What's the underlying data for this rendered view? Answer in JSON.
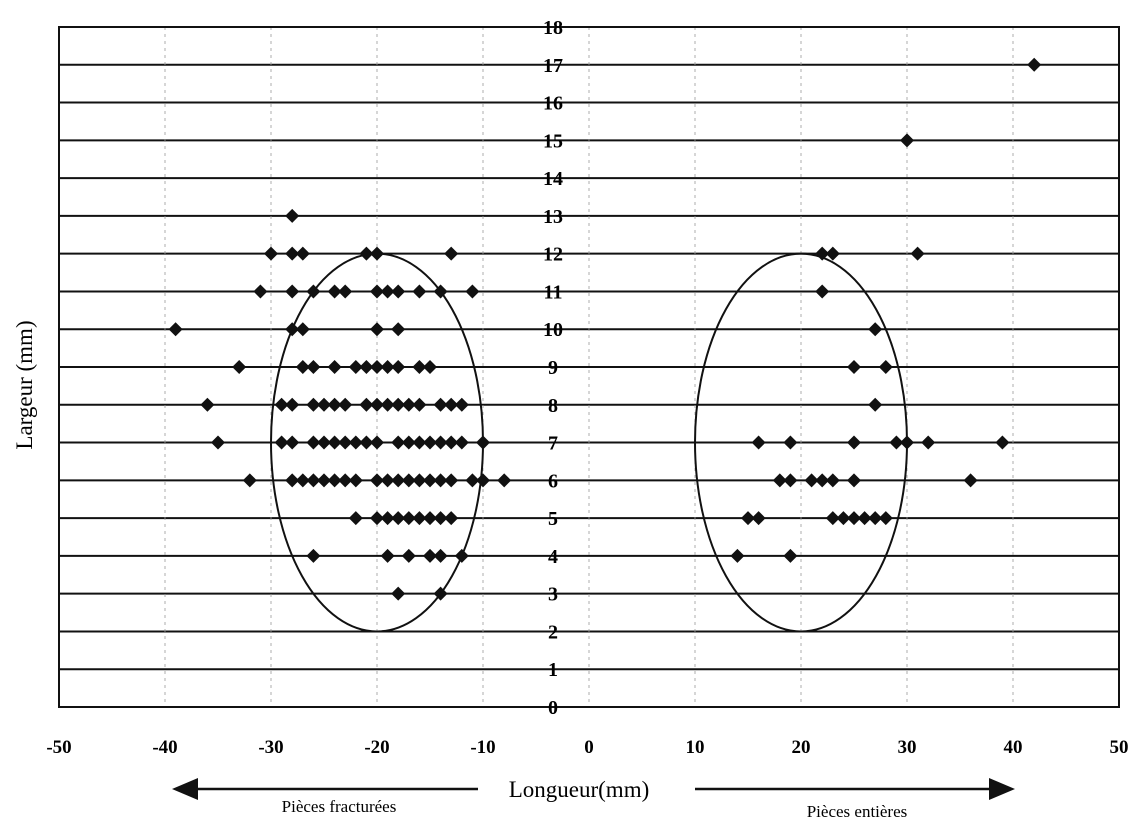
{
  "chart_data": {
    "type": "scatter",
    "title": "",
    "xlabel": "Longueur(mm)",
    "ylabel": "Largeur (mm)",
    "xlim": [
      -50,
      50
    ],
    "ylim": [
      0,
      18
    ],
    "x_ticks": [
      "-50",
      "-40",
      "-30",
      "-20",
      "-10",
      "0",
      "10",
      "20",
      "30",
      "40",
      "50"
    ],
    "y_ticks": [
      "0",
      "1",
      "2",
      "3",
      "4",
      "5",
      "6",
      "7",
      "8",
      "9",
      "10",
      "11",
      "12",
      "13",
      "14",
      "15",
      "16",
      "17",
      "18"
    ],
    "grid": "horizontal",
    "marker": "diamond",
    "marker_color": "#111111",
    "points": [
      [
        42,
        17
      ],
      [
        30,
        15
      ],
      [
        -28,
        13
      ],
      [
        -30,
        12
      ],
      [
        -28,
        12
      ],
      [
        -27,
        12
      ],
      [
        -21,
        12
      ],
      [
        -20,
        12
      ],
      [
        -13,
        12
      ],
      [
        22,
        12
      ],
      [
        23,
        12
      ],
      [
        31,
        12
      ],
      [
        -31,
        11
      ],
      [
        -28,
        11
      ],
      [
        -26,
        11
      ],
      [
        -24,
        11
      ],
      [
        -23,
        11
      ],
      [
        -20,
        11
      ],
      [
        -19,
        11
      ],
      [
        -18,
        11
      ],
      [
        -16,
        11
      ],
      [
        -14,
        11
      ],
      [
        -11,
        11
      ],
      [
        22,
        11
      ],
      [
        -39,
        10
      ],
      [
        -28,
        10
      ],
      [
        -27,
        10
      ],
      [
        -20,
        10
      ],
      [
        -18,
        10
      ],
      [
        27,
        10
      ],
      [
        -33,
        9
      ],
      [
        -27,
        9
      ],
      [
        -26,
        9
      ],
      [
        -24,
        9
      ],
      [
        -22,
        9
      ],
      [
        -21,
        9
      ],
      [
        -20,
        9
      ],
      [
        -19,
        9
      ],
      [
        -18,
        9
      ],
      [
        -16,
        9
      ],
      [
        -15,
        9
      ],
      [
        25,
        9
      ],
      [
        28,
        9
      ],
      [
        -36,
        8
      ],
      [
        -29,
        8
      ],
      [
        -28,
        8
      ],
      [
        -26,
        8
      ],
      [
        -25,
        8
      ],
      [
        -24,
        8
      ],
      [
        -23,
        8
      ],
      [
        -21,
        8
      ],
      [
        -20,
        8
      ],
      [
        -19,
        8
      ],
      [
        -18,
        8
      ],
      [
        -17,
        8
      ],
      [
        -16,
        8
      ],
      [
        -14,
        8
      ],
      [
        -13,
        8
      ],
      [
        -12,
        8
      ],
      [
        27,
        8
      ],
      [
        -35,
        7
      ],
      [
        -29,
        7
      ],
      [
        -28,
        7
      ],
      [
        -26,
        7
      ],
      [
        -25,
        7
      ],
      [
        -24,
        7
      ],
      [
        -23,
        7
      ],
      [
        -22,
        7
      ],
      [
        -21,
        7
      ],
      [
        -20,
        7
      ],
      [
        -18,
        7
      ],
      [
        -17,
        7
      ],
      [
        -16,
        7
      ],
      [
        -15,
        7
      ],
      [
        -14,
        7
      ],
      [
        -13,
        7
      ],
      [
        -12,
        7
      ],
      [
        -10,
        7
      ],
      [
        16,
        7
      ],
      [
        19,
        7
      ],
      [
        25,
        7
      ],
      [
        29,
        7
      ],
      [
        30,
        7
      ],
      [
        32,
        7
      ],
      [
        39,
        7
      ],
      [
        -32,
        6
      ],
      [
        -28,
        6
      ],
      [
        -27,
        6
      ],
      [
        -26,
        6
      ],
      [
        -25,
        6
      ],
      [
        -24,
        6
      ],
      [
        -23,
        6
      ],
      [
        -22,
        6
      ],
      [
        -20,
        6
      ],
      [
        -19,
        6
      ],
      [
        -18,
        6
      ],
      [
        -17,
        6
      ],
      [
        -16,
        6
      ],
      [
        -15,
        6
      ],
      [
        -14,
        6
      ],
      [
        -13,
        6
      ],
      [
        -11,
        6
      ],
      [
        -10,
        6
      ],
      [
        -8,
        6
      ],
      [
        18,
        6
      ],
      [
        19,
        6
      ],
      [
        21,
        6
      ],
      [
        22,
        6
      ],
      [
        23,
        6
      ],
      [
        25,
        6
      ],
      [
        36,
        6
      ],
      [
        -22,
        5
      ],
      [
        -20,
        5
      ],
      [
        -19,
        5
      ],
      [
        -18,
        5
      ],
      [
        -17,
        5
      ],
      [
        -16,
        5
      ],
      [
        -15,
        5
      ],
      [
        -14,
        5
      ],
      [
        -13,
        5
      ],
      [
        15,
        5
      ],
      [
        16,
        5
      ],
      [
        23,
        5
      ],
      [
        24,
        5
      ],
      [
        25,
        5
      ],
      [
        26,
        5
      ],
      [
        27,
        5
      ],
      [
        28,
        5
      ],
      [
        -26,
        4
      ],
      [
        -19,
        4
      ],
      [
        -17,
        4
      ],
      [
        -15,
        4
      ],
      [
        -14,
        4
      ],
      [
        -12,
        4
      ],
      [
        14,
        4
      ],
      [
        19,
        4
      ],
      [
        -18,
        3
      ],
      [
        -14,
        3
      ]
    ],
    "ellipses": [
      {
        "center": [
          -20,
          7
        ],
        "rx": 10,
        "ry": 5
      },
      {
        "center": [
          20,
          7
        ],
        "rx": 10,
        "ry": 5
      }
    ],
    "annotations": [
      {
        "text": "Pièces fracturées",
        "direction": "left"
      },
      {
        "text": "Pièces entières",
        "direction": "right"
      }
    ]
  }
}
